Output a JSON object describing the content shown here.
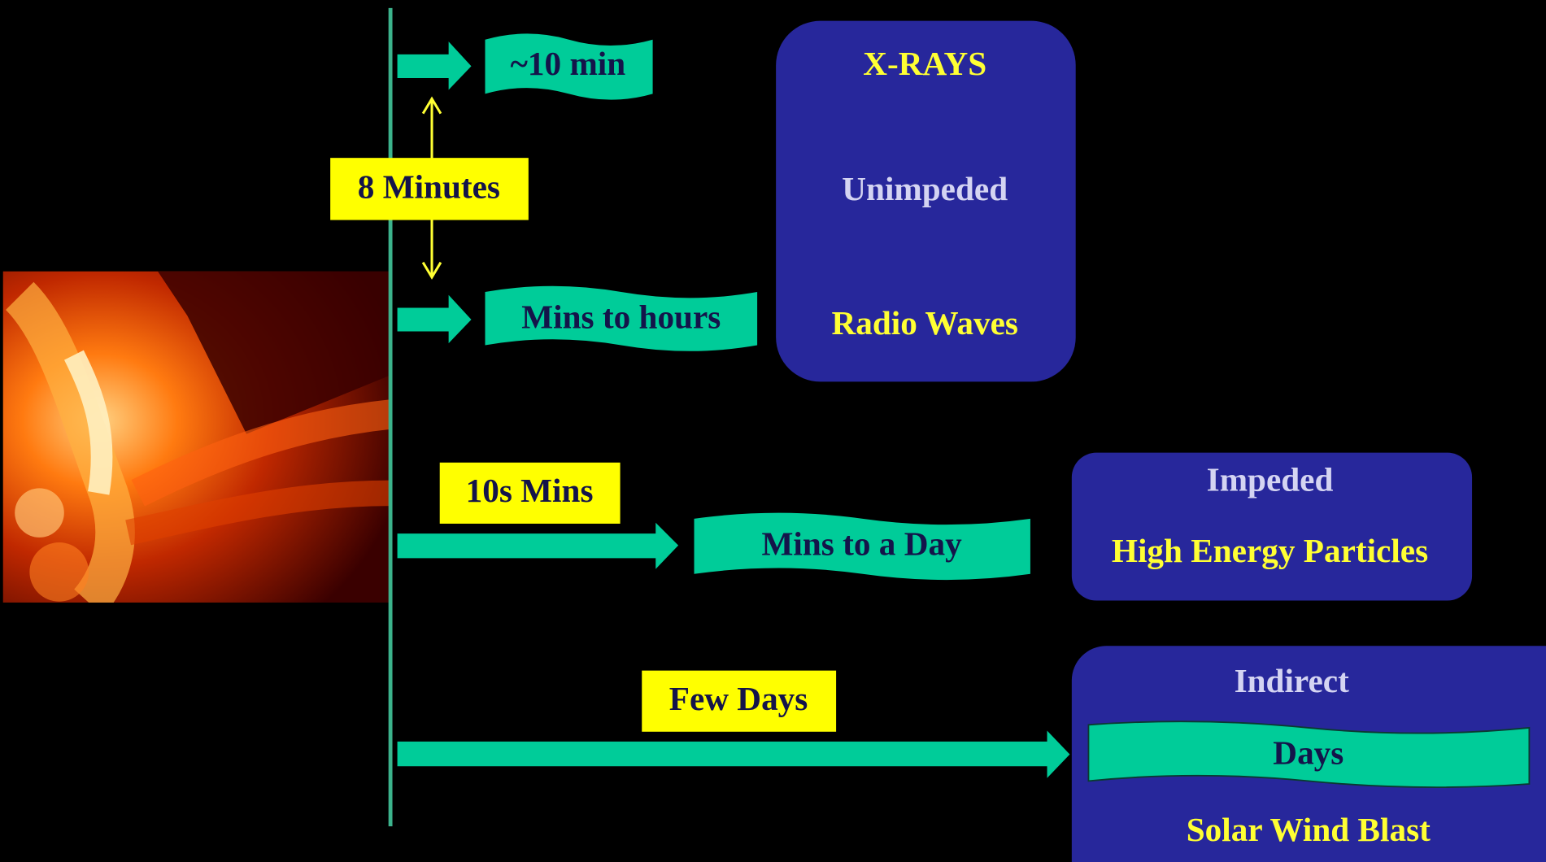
{
  "timeline": {
    "light_delay": "8 Minutes",
    "rows": [
      {
        "time": "~10 min"
      },
      {
        "time": "Mins to hours"
      },
      {
        "delay": "10s Mins",
        "time": "Mins to a Day"
      },
      {
        "delay": "Few Days"
      }
    ]
  },
  "boxes": [
    {
      "lines": [
        "X-RAYS",
        "Unimpeded",
        "Radio Waves"
      ]
    },
    {
      "lines": [
        "Impeded",
        "High Energy Particles"
      ]
    },
    {
      "lines": [
        "Indirect",
        "Days",
        "Solar Wind Blast"
      ]
    }
  ]
}
